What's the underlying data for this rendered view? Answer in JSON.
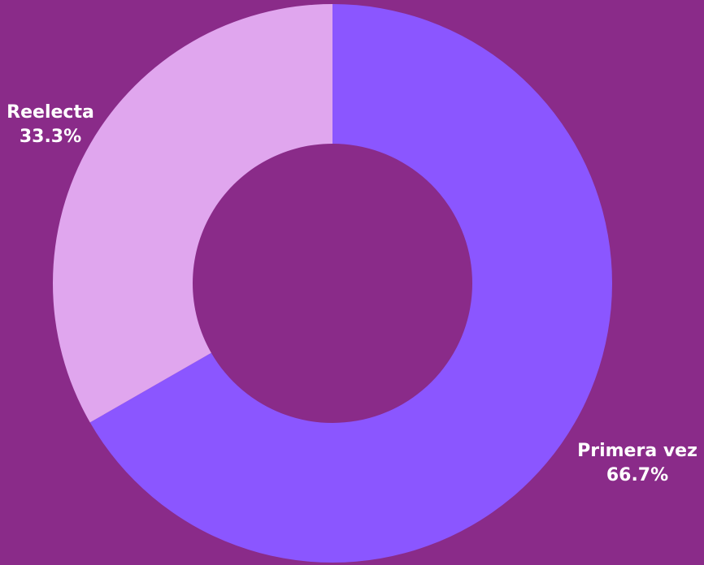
{
  "chart_data": {
    "type": "pie",
    "variant": "donut",
    "slices": [
      {
        "label": "Primera vez",
        "value": 66.7,
        "value_label": "66.7%",
        "color": "#8b56ff"
      },
      {
        "label": "Reelecta",
        "value": 33.3,
        "value_label": "33.3%",
        "color": "#e0a6ee"
      }
    ],
    "colors": {
      "background": "#8a2b89"
    }
  }
}
